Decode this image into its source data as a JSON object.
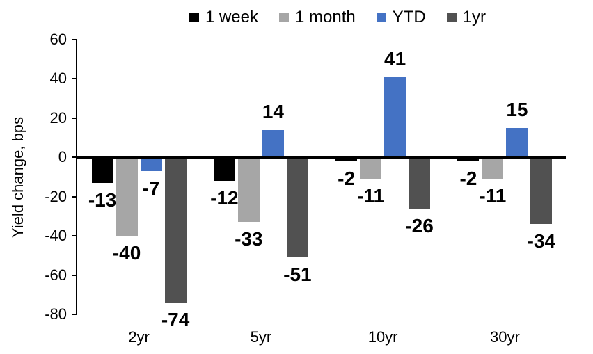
{
  "chart_data": {
    "type": "bar",
    "title": "",
    "ylabel": "Yield change, bps",
    "xlabel": "",
    "categories": [
      "2yr",
      "5yr",
      "10yr",
      "30yr"
    ],
    "series": [
      {
        "name": "1 week",
        "color": "#000000",
        "values": [
          -13,
          -12,
          -2,
          -2
        ]
      },
      {
        "name": "1 month",
        "color": "#A6A6A6",
        "values": [
          -40,
          -33,
          -11,
          -11
        ]
      },
      {
        "name": "YTD",
        "color": "#4472C4",
        "values": [
          -7,
          14,
          41,
          15
        ]
      },
      {
        "name": "1yr",
        "color": "#515151",
        "values": [
          -74,
          -51,
          -26,
          -34
        ]
      }
    ],
    "yticks": [
      60,
      40,
      20,
      0,
      -20,
      -40,
      -60,
      -80
    ],
    "ylim": [
      -80,
      60
    ],
    "legend_position": "top",
    "grid": false,
    "axis_color": "#000000",
    "data_labels": true
  }
}
